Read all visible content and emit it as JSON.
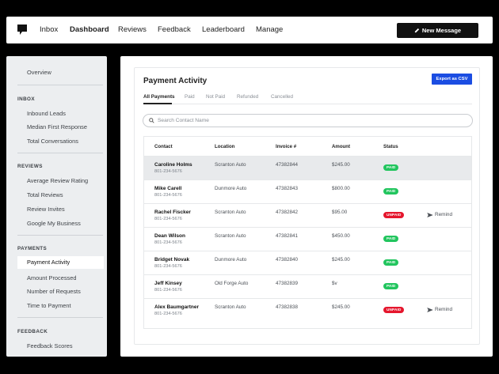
{
  "nav": {
    "links": [
      "Inbox",
      "Dashboard",
      "Reviews",
      "Feedback",
      "Leaderboard",
      "Manage"
    ],
    "active": "Dashboard",
    "new_message_label": "New Message",
    "pencil_icon": "pencil-icon"
  },
  "sidebar": {
    "overview": "Overview",
    "sections": [
      {
        "heading": "INBOX",
        "items": [
          "Inbound Leads",
          "Median First Response",
          "Total Conversations"
        ]
      },
      {
        "heading": "REVIEWS",
        "items": [
          "Average Review Rating",
          "Total Reviews",
          "Review Invites",
          "Google My Business"
        ]
      },
      {
        "heading": "PAYMENTS",
        "items": [
          "Payment Activity",
          "Amount Processed",
          "Number of Requests",
          "Time to Payment"
        ]
      },
      {
        "heading": "FEEDBACK",
        "items": [
          "Feedback Scores"
        ]
      }
    ],
    "active_item": "Payment Activity"
  },
  "main": {
    "title": "Payment Activity",
    "export_label": "Export as CSV",
    "tabs": [
      "All Payments",
      "Paid",
      "Not Paid",
      "Refunded",
      "Cancelled"
    ],
    "active_tab": "All Payments",
    "search_placeholder": "Search Contact Name",
    "table": {
      "headers": [
        "Contact",
        "Location",
        "Invoice #",
        "Amount",
        "Status"
      ],
      "rows": [
        {
          "name": "Caroline Holms",
          "phone": "801-234-5676",
          "location": "Scranton Auto",
          "invoice": "47382844",
          "amount": "$245.00",
          "status": "PAID",
          "remind": "",
          "highlight": true
        },
        {
          "name": "Mike Carell",
          "phone": "801-234-5676",
          "location": "Dunmore Auto",
          "invoice": "47382843",
          "amount": "$800.00",
          "status": "PAID",
          "remind": "",
          "highlight": false
        },
        {
          "name": "Rachel Fiscker",
          "phone": "801-234-5676",
          "location": "Scranton Auto",
          "invoice": "47382842",
          "amount": "$95.00",
          "status": "UNPAID",
          "remind": "Remind",
          "highlight": false
        },
        {
          "name": "Dean Wilson",
          "phone": "801-234-5676",
          "location": "Scranton Auto",
          "invoice": "47382841",
          "amount": "$450.00",
          "status": "PAID",
          "remind": "",
          "highlight": false
        },
        {
          "name": "Bridget Novak",
          "phone": "801-234-5676",
          "location": "Dunmore Auto",
          "invoice": "47382840",
          "amount": "$245.00",
          "status": "PAID",
          "remind": "",
          "highlight": false
        },
        {
          "name": "Jeff Kinsey",
          "phone": "801-234-5676",
          "location": "Old Forge Auto",
          "invoice": "47382839",
          "amount": "$v",
          "status": "PAID",
          "remind": "",
          "highlight": false
        },
        {
          "name": "Alex Baumgartner",
          "phone": "801-234-5676",
          "location": "Scranton Auto",
          "invoice": "47382838",
          "amount": "$245.00",
          "status": "UNPAID",
          "remind": "Remind",
          "highlight": false
        }
      ]
    }
  },
  "colors": {
    "accent": "#1b4de2",
    "paid": "#22c55e",
    "unpaid": "#e5162d",
    "dark": "#111111"
  }
}
